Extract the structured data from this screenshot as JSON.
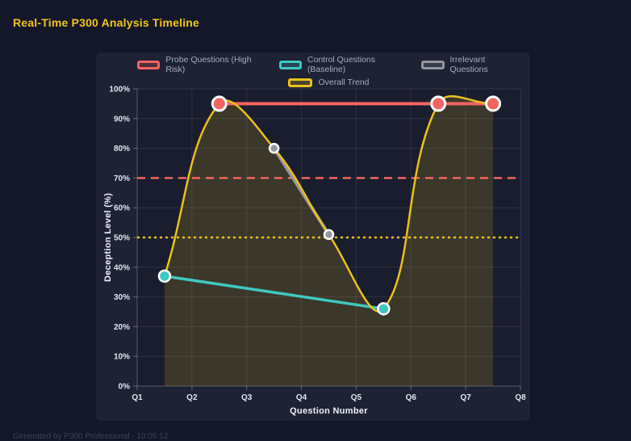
{
  "header": {
    "title": "Real-Time P300 Analysis Timeline",
    "accent_color": "#f0c61e"
  },
  "footer": {
    "text": "Generated by P300 Professional - 10:05:12"
  },
  "colors": {
    "page_background": "#14172a",
    "panel_background": "#1e2234",
    "grid": "rgba(255,255,255,0.09)",
    "tick_text": "#e3e6f0",
    "legend_text": "#a6abbc"
  },
  "chart_data": {
    "type": "line",
    "title": "",
    "xlabel": "Question Number",
    "ylabel": "Deception Level (%)",
    "x_ticks": [
      "Q1",
      "Q2",
      "Q3",
      "Q4",
      "Q5",
      "Q6",
      "Q7",
      "Q8"
    ],
    "y_ticks": [
      "0%",
      "10%",
      "20%",
      "30%",
      "40%",
      "50%",
      "60%",
      "70%",
      "80%",
      "90%",
      "100%"
    ],
    "x_range": [
      1,
      8
    ],
    "ylim": [
      0,
      100
    ],
    "y_tick_step": 10,
    "grid": true,
    "legend_position": "top",
    "series": [
      {
        "key": "probe",
        "name": "Probe Questions (High Risk)",
        "color": "#f4655f",
        "points": [
          [
            2.5,
            95
          ],
          [
            6.5,
            95
          ],
          [
            7.5,
            95
          ]
        ],
        "line_width": 4,
        "point_radius": 8.5,
        "smooth": false,
        "fill": false
      },
      {
        "key": "control",
        "name": "Control Questions (Baseline)",
        "color": "#3fc8c0",
        "points": [
          [
            1.5,
            37
          ],
          [
            5.5,
            26
          ]
        ],
        "line_width": 3.5,
        "point_radius": 7,
        "smooth": false,
        "fill": false
      },
      {
        "key": "irrelevant",
        "name": "Irrelevant Questions",
        "color": "#93969f",
        "points": [
          [
            3.5,
            80
          ],
          [
            4.5,
            51
          ]
        ],
        "line_width": 4,
        "point_radius": 5.5,
        "smooth": false,
        "fill": false
      },
      {
        "key": "trend",
        "name": "Overall Trend",
        "color": "#eac11d",
        "points": [
          [
            1.5,
            37
          ],
          [
            2.5,
            95
          ],
          [
            3.5,
            80
          ],
          [
            4.5,
            51
          ],
          [
            5.5,
            26
          ],
          [
            6.5,
            95
          ],
          [
            7.5,
            95
          ]
        ],
        "line_width": 2.5,
        "point_radius": 0,
        "smooth": true,
        "fill": true,
        "fill_opacity": 0.16
      }
    ],
    "thresholds": [
      {
        "y": 70,
        "color": "#f4655f",
        "style": "dashed",
        "width": 2.5
      },
      {
        "y": 50,
        "color": "#eac11d",
        "style": "dotted",
        "width": 2.5
      }
    ]
  }
}
